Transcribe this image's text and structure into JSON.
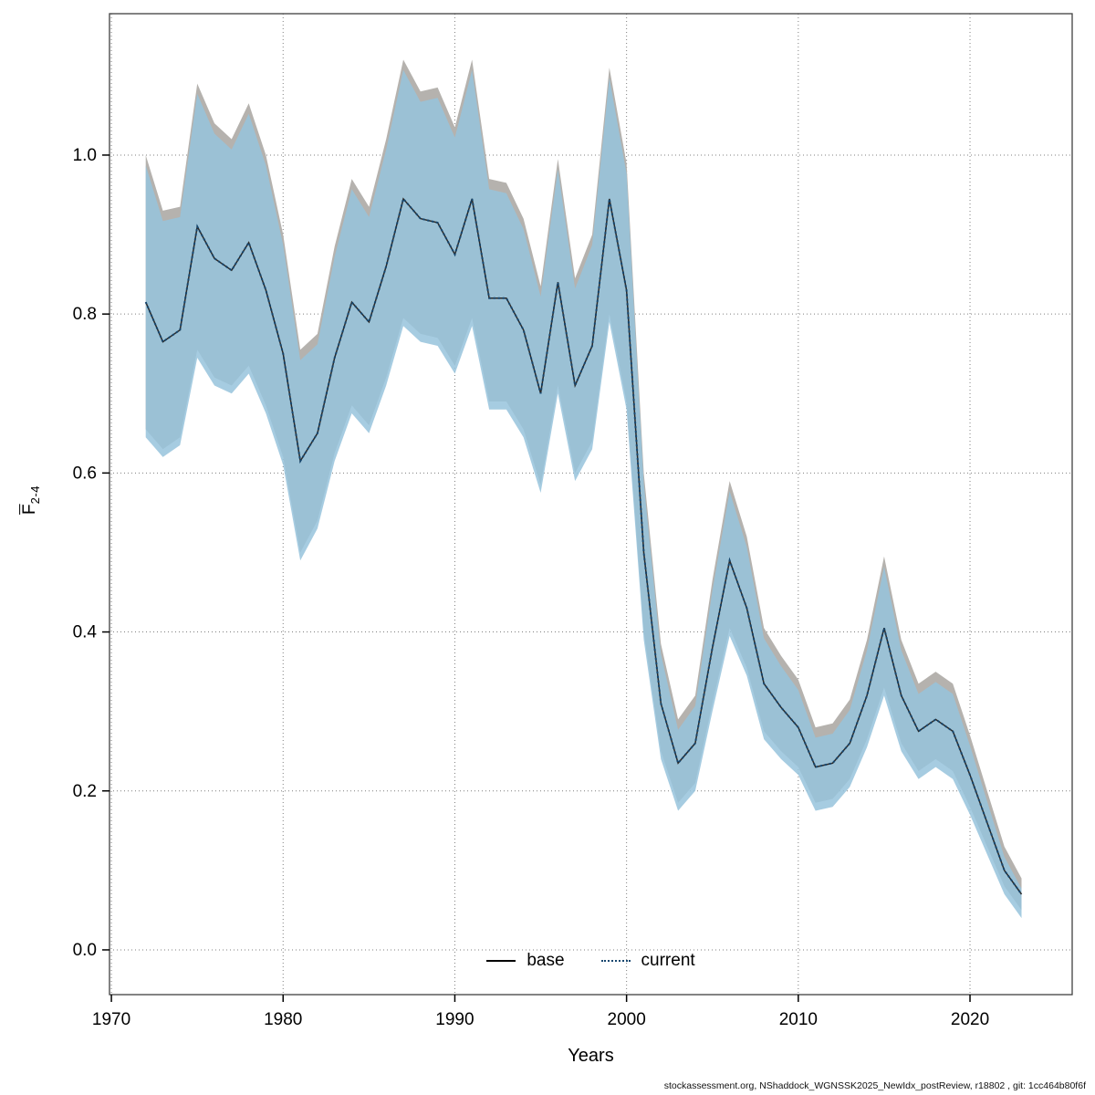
{
  "labels": {
    "xlabel": "Years",
    "ylabel_main": "F",
    "ylabel_sub": "2-4",
    "legend_base": "base",
    "legend_current": "current",
    "footer": "stockassessment.org, NShaddock_WGNSSK2025_NewIdx_postReview, r18802 , git: 1cc464b80f6f"
  },
  "chart_data": {
    "type": "line",
    "title": "",
    "xlabel": "Years",
    "ylabel": "Fbar 2-4",
    "legend_position": "bottom-center-inside",
    "grid": "dotted",
    "xlim": [
      1969.89,
      2025.95
    ],
    "ylim": [
      -0.0563,
      1.1779
    ],
    "x_ticks": [
      1970,
      1980,
      1990,
      2000,
      2010,
      2020
    ],
    "x_tick_labels": [
      "1970",
      "1980",
      "1990",
      "2000",
      "2010",
      "2020"
    ],
    "y_ticks": [
      0.0,
      0.2,
      0.4,
      0.6,
      0.8,
      1.0
    ],
    "y_tick_labels": [
      "0.0",
      "0.2",
      "0.4",
      "0.6",
      "0.8",
      "1.0"
    ],
    "years": [
      1972,
      1973,
      1974,
      1975,
      1976,
      1977,
      1978,
      1979,
      1980,
      1981,
      1982,
      1983,
      1984,
      1985,
      1986,
      1987,
      1988,
      1989,
      1990,
      1991,
      1992,
      1993,
      1994,
      1995,
      1996,
      1997,
      1998,
      1999,
      2000,
      2001,
      2002,
      2003,
      2004,
      2005,
      2006,
      2007,
      2008,
      2009,
      2010,
      2011,
      2012,
      2013,
      2014,
      2015,
      2016,
      2017,
      2018,
      2019,
      2020,
      2021,
      2022,
      2023
    ],
    "series": [
      {
        "name": "base",
        "line_style": "solid",
        "line_color": "#2b2b2b",
        "band_color": "#b5b2ae",
        "values": [
          0.815,
          0.765,
          0.78,
          0.91,
          0.87,
          0.855,
          0.89,
          0.83,
          0.75,
          0.615,
          0.65,
          0.745,
          0.815,
          0.79,
          0.86,
          0.945,
          0.92,
          0.915,
          0.875,
          0.945,
          0.82,
          0.82,
          0.78,
          0.7,
          0.84,
          0.71,
          0.76,
          0.945,
          0.83,
          0.5,
          0.31,
          0.235,
          0.26,
          0.38,
          0.49,
          0.43,
          0.335,
          0.305,
          0.28,
          0.23,
          0.235,
          0.26,
          0.32,
          0.405,
          0.32,
          0.275,
          0.29,
          0.275,
          0.22,
          0.16,
          0.1,
          0.07
        ],
        "upper": [
          1.0,
          0.93,
          0.935,
          1.09,
          1.04,
          1.02,
          1.065,
          1.0,
          0.9,
          0.755,
          0.775,
          0.885,
          0.97,
          0.935,
          1.02,
          1.12,
          1.08,
          1.085,
          1.035,
          1.12,
          0.97,
          0.965,
          0.92,
          0.835,
          0.995,
          0.845,
          0.9,
          1.11,
          0.99,
          0.6,
          0.385,
          0.29,
          0.32,
          0.465,
          0.59,
          0.52,
          0.405,
          0.37,
          0.34,
          0.28,
          0.285,
          0.315,
          0.39,
          0.495,
          0.39,
          0.335,
          0.35,
          0.335,
          0.27,
          0.2,
          0.13,
          0.09
        ],
        "lower": [
          0.655,
          0.63,
          0.645,
          0.755,
          0.72,
          0.71,
          0.735,
          0.685,
          0.62,
          0.5,
          0.54,
          0.625,
          0.685,
          0.66,
          0.72,
          0.795,
          0.775,
          0.77,
          0.735,
          0.795,
          0.69,
          0.69,
          0.655,
          0.585,
          0.71,
          0.6,
          0.64,
          0.8,
          0.69,
          0.4,
          0.25,
          0.185,
          0.21,
          0.31,
          0.405,
          0.355,
          0.275,
          0.25,
          0.23,
          0.185,
          0.19,
          0.215,
          0.265,
          0.33,
          0.26,
          0.225,
          0.24,
          0.225,
          0.18,
          0.13,
          0.08,
          0.05
        ]
      },
      {
        "name": "current",
        "line_style": "dotted",
        "line_color": "#16466e",
        "band_color": "rgba(150,195,220,0.85)",
        "values": [
          0.815,
          0.765,
          0.78,
          0.91,
          0.87,
          0.855,
          0.89,
          0.83,
          0.75,
          0.615,
          0.65,
          0.745,
          0.815,
          0.79,
          0.86,
          0.945,
          0.92,
          0.915,
          0.875,
          0.945,
          0.82,
          0.82,
          0.78,
          0.7,
          0.84,
          0.71,
          0.76,
          0.945,
          0.83,
          0.5,
          0.31,
          0.235,
          0.26,
          0.38,
          0.49,
          0.43,
          0.335,
          0.305,
          0.28,
          0.23,
          0.235,
          0.26,
          0.32,
          0.405,
          0.32,
          0.275,
          0.29,
          0.275,
          0.22,
          0.16,
          0.1,
          0.07
        ],
        "upper": [
          0.987,
          0.917,
          0.922,
          1.077,
          1.027,
          1.007,
          1.052,
          0.987,
          0.887,
          0.742,
          0.762,
          0.872,
          0.957,
          0.922,
          1.007,
          1.107,
          1.067,
          1.072,
          1.022,
          1.107,
          0.957,
          0.952,
          0.907,
          0.822,
          0.982,
          0.832,
          0.887,
          1.097,
          0.977,
          0.587,
          0.372,
          0.277,
          0.307,
          0.452,
          0.577,
          0.507,
          0.392,
          0.357,
          0.327,
          0.267,
          0.272,
          0.302,
          0.377,
          0.482,
          0.377,
          0.322,
          0.337,
          0.322,
          0.257,
          0.187,
          0.117,
          0.077
        ],
        "lower": [
          0.645,
          0.62,
          0.635,
          0.745,
          0.71,
          0.7,
          0.725,
          0.675,
          0.61,
          0.49,
          0.53,
          0.615,
          0.675,
          0.65,
          0.71,
          0.785,
          0.765,
          0.76,
          0.725,
          0.785,
          0.68,
          0.68,
          0.645,
          0.575,
          0.7,
          0.59,
          0.63,
          0.79,
          0.68,
          0.39,
          0.24,
          0.175,
          0.2,
          0.3,
          0.395,
          0.345,
          0.265,
          0.24,
          0.22,
          0.175,
          0.18,
          0.205,
          0.255,
          0.32,
          0.25,
          0.215,
          0.23,
          0.215,
          0.17,
          0.12,
          0.07,
          0.04
        ]
      }
    ]
  }
}
